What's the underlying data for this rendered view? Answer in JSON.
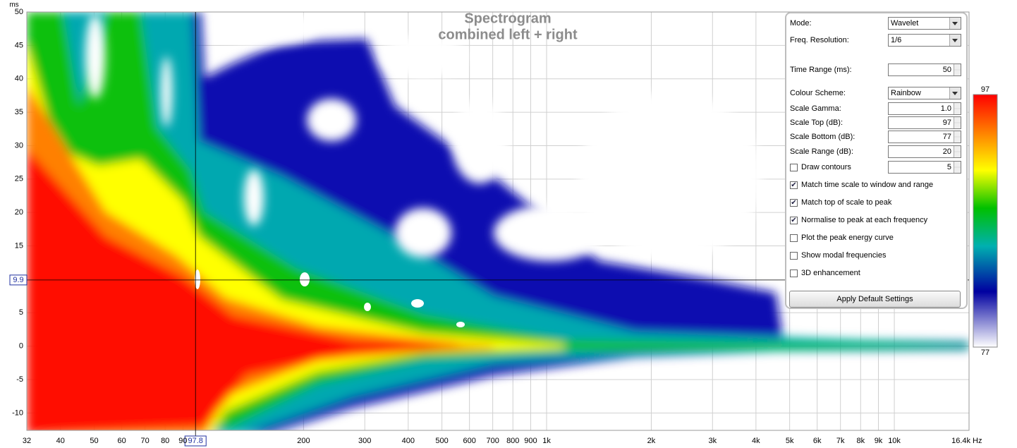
{
  "chart_data": {
    "type": "spectrogram",
    "title": "Spectrogram",
    "subtitle": "combined left + right",
    "x_unit": "Hz",
    "y_unit": "ms",
    "log_x": true,
    "grid": true,
    "xlim": [
      32,
      16400
    ],
    "ylim": [
      -12.6,
      50
    ],
    "xticks": [
      32,
      40,
      50,
      60,
      70,
      80,
      90,
      200,
      300,
      400,
      500,
      600,
      700,
      800,
      900,
      {
        "value": 1000,
        "label": "1k"
      },
      {
        "value": 2000,
        "label": "2k"
      },
      {
        "value": 3000,
        "label": "3k"
      },
      {
        "value": 4000,
        "label": "4k"
      },
      {
        "value": 5000,
        "label": "5k"
      },
      {
        "value": 6000,
        "label": "6k"
      },
      {
        "value": 7000,
        "label": "7k"
      },
      {
        "value": 8000,
        "label": "8k"
      },
      {
        "value": 9000,
        "label": "9k"
      },
      {
        "value": 10000,
        "label": "10k"
      },
      {
        "value": 16400,
        "label": "16.4k"
      }
    ],
    "yticks": [
      50,
      45,
      40,
      35,
      30,
      25,
      20,
      15,
      5,
      0,
      -5,
      -10
    ],
    "cursor": {
      "x": 97.8,
      "y": 9.9
    },
    "colorbar": {
      "max": 97,
      "min": 77
    }
  },
  "panel": {
    "fields": [
      {
        "label": "Mode:",
        "value": "Wavelet",
        "control": "dropdown"
      },
      {
        "label": "Freq. Resolution:",
        "value": "1/6",
        "control": "dropdown"
      },
      {
        "label": "Time Range (ms):",
        "value": "50",
        "control": "spin"
      },
      {
        "label": "Colour Scheme:",
        "value": "Rainbow",
        "control": "dropdown"
      },
      {
        "label": "Scale Gamma:",
        "value": "1.0",
        "control": "spin"
      },
      {
        "label": "Scale Top (dB):",
        "value": "97",
        "control": "spin"
      },
      {
        "label": "Scale Bottom (dB):",
        "value": "77",
        "control": "spin"
      },
      {
        "label": "Scale Range (dB):",
        "value": "20",
        "control": "spin"
      },
      {
        "label": "Draw contours",
        "value": "5",
        "control": "checkbox-spin",
        "checked": false
      }
    ],
    "checkboxes": [
      {
        "label": "Match time scale to window and range",
        "checked": true
      },
      {
        "label": "Match top of scale to peak",
        "checked": true
      },
      {
        "label": "Normalise to peak at each frequency",
        "checked": true
      },
      {
        "label": "Plot the peak energy curve",
        "checked": false
      },
      {
        "label": "Show modal frequencies",
        "checked": false
      },
      {
        "label": "3D enhancement",
        "checked": false
      }
    ],
    "button": "Apply Default Settings"
  }
}
